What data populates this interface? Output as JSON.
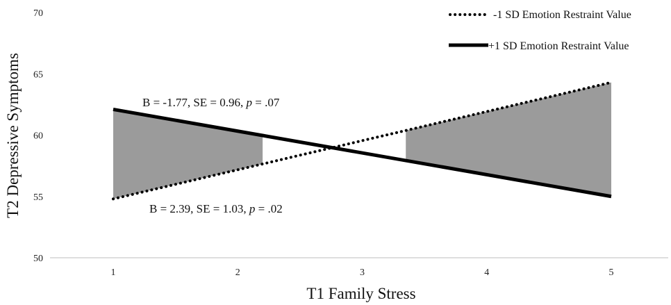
{
  "chart_data": {
    "type": "line",
    "title": "",
    "xlabel": "T1 Family Stress",
    "ylabel": "T2 Depressive Symptoms",
    "x": [
      1,
      5
    ],
    "x_ticks": [
      "1",
      "2",
      "3",
      "4",
      "5"
    ],
    "y_ticks": [
      "50",
      "55",
      "60",
      "65",
      "70"
    ],
    "xlim": [
      1,
      5
    ],
    "ylim": [
      50,
      70
    ],
    "grid": false,
    "legend_position": "top-right",
    "series": [
      {
        "name": "-1 SD Emotion Restraint Value",
        "values": [
          54.8,
          64.3
        ],
        "style": "dotted",
        "color": "#000000"
      },
      {
        "name": "+1 SD Emotion Restraint Value",
        "values": [
          62.1,
          55.0
        ],
        "style": "solid",
        "color": "#000000"
      }
    ],
    "shaded_regions": [
      {
        "x_start": 1,
        "x_end": 2.2,
        "color": "#9b9b9b"
      },
      {
        "x_start": 3.35,
        "x_end": 5,
        "color": "#9b9b9b"
      }
    ],
    "annotations": [
      {
        "prefix": "B = -1.77, SE = 0.96, ",
        "p_label": "p",
        "suffix": " = .07"
      },
      {
        "prefix": "B = 2.39, SE = 1.03, ",
        "p_label": "p",
        "suffix": " = .02"
      }
    ]
  }
}
